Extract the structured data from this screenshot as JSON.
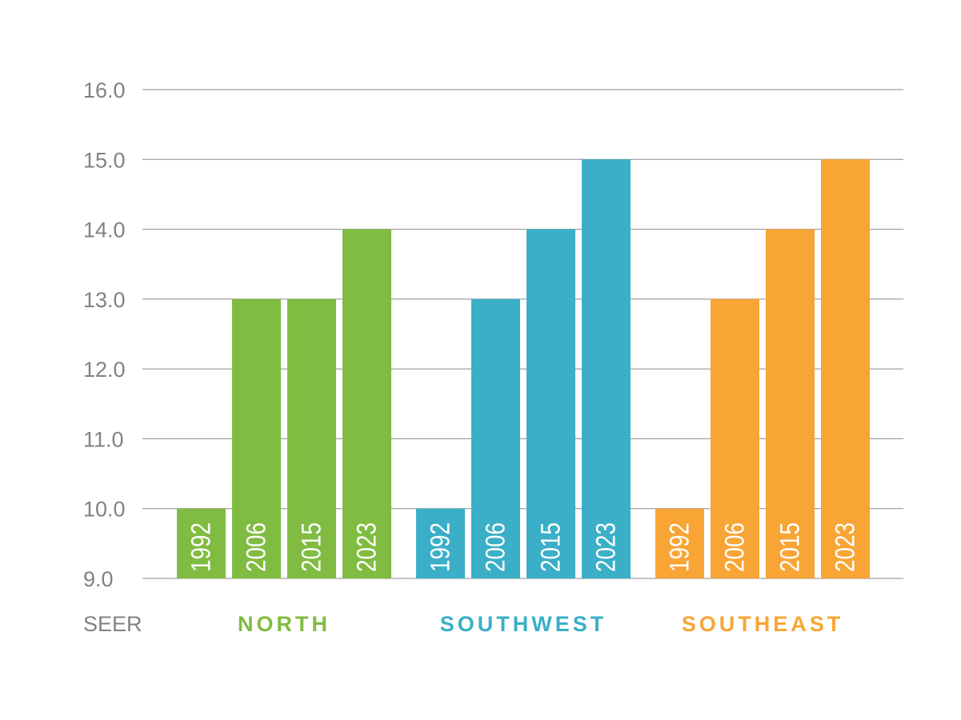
{
  "chart_data": {
    "type": "bar",
    "title": "",
    "xlabel": "",
    "ylabel": "SEER",
    "ylim": [
      9,
      16
    ],
    "yticks": [
      "16.0",
      "15.0",
      "14.0",
      "13.0",
      "12.0",
      "11.0",
      "10.0",
      "9.0"
    ],
    "grid": true,
    "groups": [
      {
        "name": "NORTH",
        "color": "#80bc41",
        "bars": [
          {
            "label": "1992",
            "value": 10
          },
          {
            "label": "2006",
            "value": 13
          },
          {
            "label": "2015",
            "value": 13
          },
          {
            "label": "2023",
            "value": 14
          }
        ]
      },
      {
        "name": "SOUTHWEST",
        "color": "#3aafc7",
        "bars": [
          {
            "label": "1992",
            "value": 10
          },
          {
            "label": "2006",
            "value": 13
          },
          {
            "label": "2015",
            "value": 14
          },
          {
            "label": "2023",
            "value": 15
          }
        ]
      },
      {
        "name": "SOUTHEAST",
        "color": "#f8a535",
        "bars": [
          {
            "label": "1992",
            "value": 10
          },
          {
            "label": "2006",
            "value": 13
          },
          {
            "label": "2015",
            "value": 14
          },
          {
            "label": "2023",
            "value": 15
          }
        ]
      }
    ]
  }
}
